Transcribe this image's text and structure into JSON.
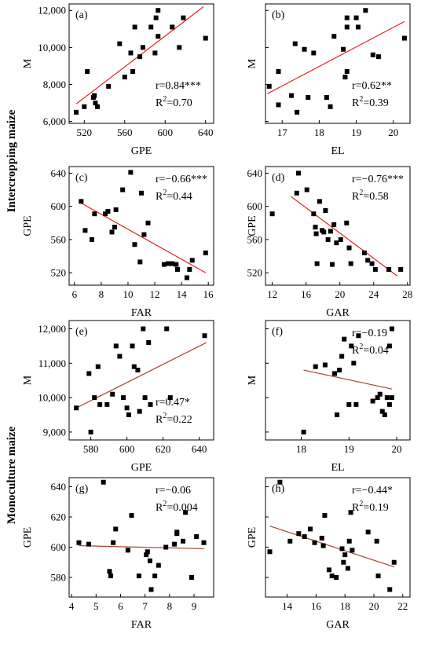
{
  "row_titles": {
    "intercropping": "Intercropping maize",
    "monoculture": "Monoculture maize"
  },
  "colors": {
    "points": "#000000",
    "fit_intercropping": "#e8231c",
    "fit_monoculture": "#a5432a",
    "axes": "#000000"
  },
  "chart_data": [
    {
      "id": "a",
      "panel_label": "(a)",
      "type": "scatter",
      "xlabel": "GPE",
      "ylabel": "M",
      "xlim": [
        505,
        648
      ],
      "ylim": [
        5900,
        12350
      ],
      "xticks": [
        520,
        560,
        600,
        640
      ],
      "xtick_labels": [
        "520",
        "560",
        "600",
        "640"
      ],
      "yticks": [
        6000,
        8000,
        10000,
        12000
      ],
      "ytick_labels": [
        "6,000",
        "8,000",
        "10,000",
        "12,000"
      ],
      "stat_r": "r=0.84***",
      "stat_r2_prefix": "R",
      "stat_r2_sup": "2",
      "stat_r2_suffix": "=0.70",
      "stat_pos": "bottom-right",
      "fit_color": "#e8231c",
      "points": [
        [
          512,
          6500
        ],
        [
          520,
          6800
        ],
        [
          523,
          8700
        ],
        [
          529,
          7300
        ],
        [
          530,
          7400
        ],
        [
          531,
          7000
        ],
        [
          533,
          6800
        ],
        [
          544,
          7900
        ],
        [
          555,
          10200
        ],
        [
          560,
          8400
        ],
        [
          566,
          9700
        ],
        [
          568,
          8700
        ],
        [
          570,
          11100
        ],
        [
          575,
          9500
        ],
        [
          578,
          10000
        ],
        [
          586,
          11100
        ],
        [
          590,
          9700
        ],
        [
          591,
          11600
        ],
        [
          593,
          12000
        ],
        [
          593,
          10600
        ],
        [
          607,
          11100
        ],
        [
          614,
          10000
        ],
        [
          618,
          11600
        ],
        [
          640,
          10500
        ]
      ],
      "fit": [
        [
          512,
          6950
        ],
        [
          638,
          12200
        ]
      ]
    },
    {
      "id": "b",
      "panel_label": "(b)",
      "type": "scatter",
      "xlabel": "EL",
      "ylabel": "M",
      "xlim": [
        16.55,
        20.45
      ],
      "ylim": [
        5900,
        12350
      ],
      "xticks": [
        17,
        18,
        19,
        20
      ],
      "xtick_labels": [
        "17",
        "18",
        "19",
        "20"
      ],
      "yticks": [
        6000,
        8000,
        10000,
        12000
      ],
      "ytick_labels": [
        "",
        "",
        "",
        ""
      ],
      "stat_r": "r=0.62**",
      "stat_r2_prefix": "R",
      "stat_r2_sup": "2",
      "stat_r2_suffix": "=0.39",
      "stat_pos": "bottom-right",
      "fit_color": "#e8231c",
      "points": [
        [
          16.65,
          7900
        ],
        [
          16.9,
          8700
        ],
        [
          16.9,
          6900
        ],
        [
          17.25,
          7400
        ],
        [
          17.35,
          10200
        ],
        [
          17.4,
          6500
        ],
        [
          17.6,
          9900
        ],
        [
          17.7,
          7300
        ],
        [
          17.85,
          9700
        ],
        [
          18.2,
          7300
        ],
        [
          18.3,
          6800
        ],
        [
          18.4,
          10600
        ],
        [
          18.65,
          9900
        ],
        [
          18.7,
          8400
        ],
        [
          18.75,
          8700
        ],
        [
          18.75,
          11600
        ],
        [
          18.75,
          11100
        ],
        [
          19,
          11600
        ],
        [
          19.05,
          11100
        ],
        [
          19.25,
          12000
        ],
        [
          19.45,
          9600
        ],
        [
          19.6,
          9500
        ],
        [
          20.3,
          10500
        ]
      ],
      "fit": [
        [
          16.6,
          7500
        ],
        [
          20.3,
          11400
        ]
      ]
    },
    {
      "id": "c",
      "panel_label": "(c)",
      "type": "scatter",
      "xlabel": "FAR",
      "ylabel": "GPE",
      "xlim": [
        5.6,
        16.4
      ],
      "ylim": [
        505,
        648
      ],
      "xticks": [
        6,
        8,
        10,
        12,
        14,
        16
      ],
      "xtick_labels": [
        "6",
        "8",
        "10",
        "12",
        "14",
        "16"
      ],
      "yticks": [
        520,
        560,
        600,
        640
      ],
      "ytick_labels": [
        "520",
        "560",
        "600",
        "640"
      ],
      "stat_r": "r=−0.66***",
      "stat_r2_prefix": "R",
      "stat_r2_sup": "2",
      "stat_r2_suffix": "=0.44",
      "stat_pos": "top-right",
      "fit_color": "#e8231c",
      "points": [
        [
          6.5,
          606
        ],
        [
          6.8,
          571
        ],
        [
          7.3,
          560
        ],
        [
          7.5,
          591
        ],
        [
          8.3,
          591
        ],
        [
          8.5,
          594
        ],
        [
          8.8,
          569
        ],
        [
          9.0,
          575
        ],
        [
          9.1,
          596
        ],
        [
          9.6,
          620
        ],
        [
          10.2,
          641
        ],
        [
          10.5,
          554
        ],
        [
          10.9,
          533
        ],
        [
          11.0,
          616
        ],
        [
          11.2,
          566
        ],
        [
          11.5,
          580
        ],
        [
          12.7,
          530
        ],
        [
          13.0,
          531
        ],
        [
          13.3,
          531
        ],
        [
          13.6,
          530
        ],
        [
          13.7,
          524
        ],
        [
          14.4,
          514
        ],
        [
          14.6,
          524
        ],
        [
          14.8,
          535
        ],
        [
          15.8,
          544
        ]
      ],
      "fit": [
        [
          6.5,
          604
        ],
        [
          15.8,
          520
        ]
      ]
    },
    {
      "id": "d",
      "panel_label": "(d)",
      "type": "scatter",
      "xlabel": "GAR",
      "ylabel": "GPE",
      "xlim": [
        11.2,
        28.3
      ],
      "ylim": [
        505,
        648
      ],
      "xticks": [
        12,
        16,
        20,
        24,
        28
      ],
      "xtick_labels": [
        "12",
        "16",
        "20",
        "24",
        "28"
      ],
      "yticks": [
        520,
        560,
        600,
        640
      ],
      "ytick_labels": [
        "520",
        "560",
        "600",
        "640"
      ],
      "stat_r": "r=−0.76***",
      "stat_r2_prefix": "R",
      "stat_r2_sup": "2",
      "stat_r2_suffix": "=0.58",
      "stat_pos": "top-right",
      "fit_color": "#e8231c",
      "points": [
        [
          12,
          591
        ],
        [
          14.9,
          616
        ],
        [
          15.1,
          640
        ],
        [
          16.1,
          620
        ],
        [
          16.9,
          591
        ],
        [
          17.1,
          575
        ],
        [
          17.2,
          567
        ],
        [
          17.3,
          531
        ],
        [
          17.6,
          606
        ],
        [
          17.9,
          571
        ],
        [
          18.1,
          569
        ],
        [
          18.3,
          595
        ],
        [
          18.6,
          560
        ],
        [
          18.9,
          570
        ],
        [
          19.1,
          530
        ],
        [
          19.3,
          578
        ],
        [
          19.6,
          556
        ],
        [
          20.1,
          560
        ],
        [
          20.8,
          580
        ],
        [
          21.1,
          550
        ],
        [
          21.3,
          531
        ],
        [
          22.9,
          544
        ],
        [
          23.3,
          535
        ],
        [
          23.8,
          531
        ],
        [
          24.2,
          524
        ],
        [
          25.8,
          524
        ],
        [
          27.2,
          524
        ]
      ],
      "fit": [
        [
          14.2,
          612
        ],
        [
          26.8,
          516
        ]
      ]
    },
    {
      "id": "e",
      "panel_label": "(e)",
      "type": "scatter",
      "xlabel": "GPE",
      "ylabel": "M",
      "xlim": [
        568,
        648
      ],
      "ylim": [
        8770,
        12240
      ],
      "xticks": [
        580,
        600,
        620,
        640
      ],
      "xtick_labels": [
        "580",
        "600",
        "620",
        "640"
      ],
      "yticks": [
        9000,
        10000,
        11000,
        12000
      ],
      "ytick_labels": [
        "9,000",
        "10,000",
        "11,000",
        "12,000"
      ],
      "stat_r": "r=0.47*",
      "stat_r2_prefix": "R",
      "stat_r2_sup": "2",
      "stat_r2_suffix": "=0.22",
      "stat_pos": "bottom-right",
      "fit_color": "#a5432a",
      "points": [
        [
          572,
          9700
        ],
        [
          579,
          10700
        ],
        [
          580,
          9000
        ],
        [
          582,
          10000
        ],
        [
          584,
          10900
        ],
        [
          585,
          9800
        ],
        [
          589,
          9800
        ],
        [
          592,
          10100
        ],
        [
          594,
          11500
        ],
        [
          596,
          11200
        ],
        [
          598,
          10000
        ],
        [
          600,
          9700
        ],
        [
          601,
          9500
        ],
        [
          603,
          11500
        ],
        [
          604,
          10900
        ],
        [
          606,
          10800
        ],
        [
          607,
          9600
        ],
        [
          609,
          12000
        ],
        [
          610,
          10000
        ],
        [
          612,
          11600
        ],
        [
          613,
          9800
        ],
        [
          622,
          12000
        ],
        [
          624,
          10000
        ],
        [
          643,
          11800
        ]
      ],
      "fit": [
        [
          572,
          9700
        ],
        [
          644,
          11600
        ]
      ]
    },
    {
      "id": "f",
      "panel_label": "(f)",
      "type": "scatter",
      "xlabel": "EL",
      "ylabel": "M",
      "xlim": [
        17.25,
        20.28
      ],
      "ylim": [
        8770,
        12240
      ],
      "xticks": [
        18,
        19,
        20
      ],
      "xtick_labels": [
        "18",
        "19",
        "20"
      ],
      "yticks": [
        9000,
        10000,
        11000,
        12000
      ],
      "ytick_labels": [
        "",
        "",
        "",
        ""
      ],
      "stat_r": "r=−0.19",
      "stat_r2_prefix": "R",
      "stat_r2_sup": "2",
      "stat_r2_suffix": "=0.04",
      "stat_pos": "top-right",
      "fit_color": "#a5432a",
      "points": [
        [
          18.05,
          9000
        ],
        [
          18.3,
          10900
        ],
        [
          18.5,
          10950
        ],
        [
          18.7,
          10700
        ],
        [
          18.75,
          9500
        ],
        [
          18.8,
          10800
        ],
        [
          18.85,
          11200
        ],
        [
          18.9,
          11700
        ],
        [
          19.0,
          9800
        ],
        [
          19.05,
          11500
        ],
        [
          19.1,
          11000
        ],
        [
          19.15,
          9800
        ],
        [
          19.2,
          11800
        ],
        [
          19.5,
          9900
        ],
        [
          19.6,
          10000
        ],
        [
          19.65,
          10100
        ],
        [
          19.7,
          9600
        ],
        [
          19.75,
          9500
        ],
        [
          19.8,
          10000
        ],
        [
          19.85,
          11500
        ],
        [
          19.85,
          9800
        ],
        [
          19.9,
          12000
        ],
        [
          19.9,
          10000
        ]
      ],
      "fit": [
        [
          18.05,
          10800
        ],
        [
          19.9,
          10250
        ]
      ]
    },
    {
      "id": "g",
      "panel_label": "(g)",
      "type": "scatter",
      "xlabel": "FAR",
      "ylabel": "GPE",
      "xlim": [
        3.9,
        9.8
      ],
      "ylim": [
        567,
        646
      ],
      "xticks": [
        4,
        5,
        6,
        7,
        8,
        9
      ],
      "xtick_labels": [
        "4",
        "5",
        "6",
        "7",
        "8",
        "9"
      ],
      "yticks": [
        580,
        600,
        620,
        640
      ],
      "ytick_labels": [
        "580",
        "600",
        "620",
        "640"
      ],
      "stat_r": "r=−0.06",
      "stat_r2_prefix": "R",
      "stat_r2_sup": "2",
      "stat_r2_suffix": "=0.004",
      "stat_pos": "top-right",
      "fit_color": "#a5432a",
      "points": [
        [
          4.3,
          603
        ],
        [
          4.7,
          602
        ],
        [
          5.3,
          643
        ],
        [
          5.55,
          584
        ],
        [
          5.6,
          581
        ],
        [
          5.7,
          603
        ],
        [
          5.8,
          612
        ],
        [
          6.3,
          598
        ],
        [
          6.45,
          621
        ],
        [
          6.75,
          581
        ],
        [
          7.05,
          595
        ],
        [
          7.1,
          597
        ],
        [
          7.2,
          591
        ],
        [
          7.25,
          572
        ],
        [
          7.4,
          581
        ],
        [
          7.55,
          588
        ],
        [
          7.85,
          600
        ],
        [
          8.2,
          602
        ],
        [
          8.3,
          609
        ],
        [
          8.3,
          610
        ],
        [
          8.55,
          604
        ],
        [
          8.65,
          623
        ],
        [
          8.9,
          580
        ],
        [
          9.1,
          607
        ],
        [
          9.4,
          603
        ]
      ],
      "fit": [
        [
          4.3,
          601
        ],
        [
          9.4,
          599
        ]
      ]
    },
    {
      "id": "h",
      "panel_label": "(h)",
      "type": "scatter",
      "xlabel": "GAR",
      "ylabel": "GPE",
      "xlim": [
        12.5,
        22.5
      ],
      "ylim": [
        567,
        646
      ],
      "xticks": [
        14,
        16,
        18,
        20,
        22
      ],
      "xtick_labels": [
        "14",
        "16",
        "18",
        "20",
        "22"
      ],
      "yticks": [
        580,
        600,
        620,
        640
      ],
      "ytick_labels": [
        "",
        "",
        "",
        ""
      ],
      "stat_r": "r=−0.44*",
      "stat_r2_prefix": "R",
      "stat_r2_sup": "2",
      "stat_r2_suffix": "=0.19",
      "stat_pos": "top-right",
      "fit_color": "#a5432a",
      "points": [
        [
          12.8,
          597
        ],
        [
          13.5,
          643
        ],
        [
          14.2,
          604
        ],
        [
          14.8,
          609
        ],
        [
          15.2,
          607
        ],
        [
          15.6,
          612
        ],
        [
          15.9,
          603
        ],
        [
          16.4,
          606
        ],
        [
          16.5,
          601
        ],
        [
          16.6,
          621
        ],
        [
          16.9,
          585
        ],
        [
          17.1,
          581
        ],
        [
          17.4,
          580
        ],
        [
          17.8,
          599
        ],
        [
          17.9,
          590
        ],
        [
          18.0,
          595
        ],
        [
          18.2,
          586
        ],
        [
          18.3,
          604
        ],
        [
          18.4,
          623
        ],
        [
          18.5,
          598
        ],
        [
          19.6,
          610
        ],
        [
          20.2,
          604
        ],
        [
          20.3,
          581
        ],
        [
          21.1,
          572
        ],
        [
          21.4,
          590
        ]
      ],
      "fit": [
        [
          12.8,
          614
        ],
        [
          21.4,
          587
        ]
      ]
    }
  ]
}
